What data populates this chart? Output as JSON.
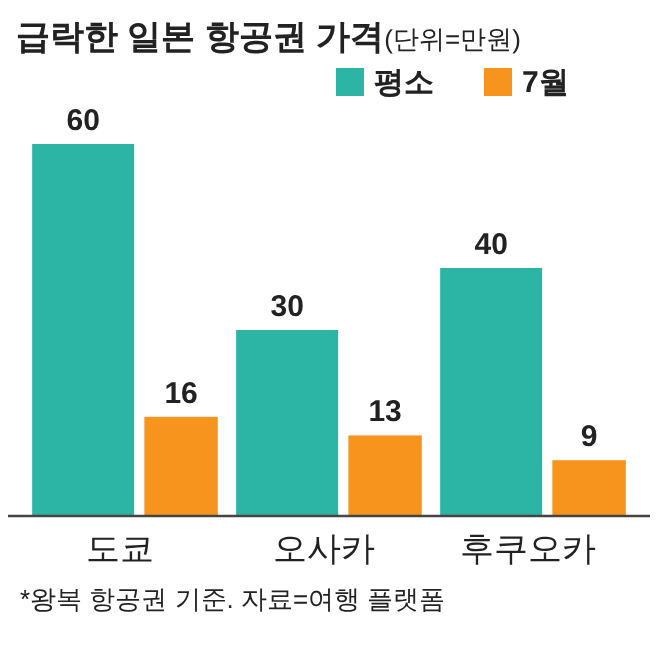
{
  "chart_data": {
    "type": "bar",
    "title": "급락한 일본 항공권 가격",
    "subtitle": "(단위=만원)",
    "categories": [
      "도쿄",
      "오사카",
      "후쿠오카"
    ],
    "series": [
      {
        "name": "평소",
        "color": "#2cb4a4",
        "values": [
          60,
          30,
          40
        ]
      },
      {
        "name": "7월",
        "color": "#f7941d",
        "values": [
          16,
          13,
          9
        ]
      }
    ],
    "data_labels": true,
    "legend": "top right",
    "annotations": [
      "*왕복 항공권 기준. 자료=여행 플랫폼"
    ]
  }
}
